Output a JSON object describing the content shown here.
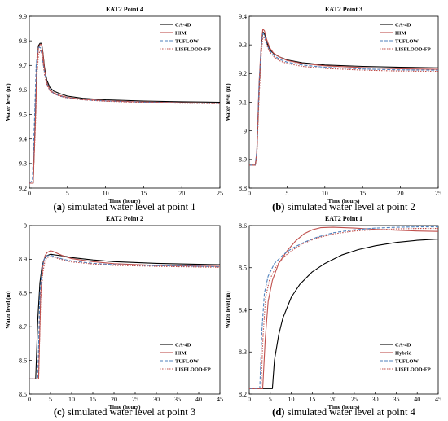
{
  "chart_data": [
    {
      "type": "line",
      "title": "EAT2 Point 4",
      "caption_letter": "(a)",
      "caption_text": " simulated water level at point 1",
      "xlabel": "Time (hours)",
      "ylabel": "Water level (m)",
      "xlim": [
        0,
        25
      ],
      "ylim": [
        9.2,
        9.9
      ],
      "xticks": [
        0,
        5,
        10,
        15,
        20,
        25
      ],
      "yticks": [
        9.2,
        9.3,
        9.4,
        9.5,
        9.6,
        9.7,
        9.8,
        9.9
      ],
      "legend": "top-right",
      "series": [
        {
          "name": "CA-4D",
          "color": "#000000",
          "dash": "",
          "x": [
            0,
            0.5,
            0.8,
            1.0,
            1.2,
            1.4,
            1.6,
            1.8,
            2.0,
            2.3,
            2.7,
            3.2,
            4,
            5,
            7,
            10,
            15,
            20,
            25
          ],
          "y": [
            9.22,
            9.22,
            9.5,
            9.72,
            9.78,
            9.79,
            9.79,
            9.75,
            9.69,
            9.64,
            9.61,
            9.595,
            9.585,
            9.575,
            9.566,
            9.56,
            9.555,
            9.552,
            9.55
          ]
        },
        {
          "name": "HIM",
          "color": "#c0504d",
          "dash": "",
          "x": [
            0,
            0.5,
            0.8,
            1.0,
            1.2,
            1.4,
            1.6,
            1.8,
            2.0,
            2.3,
            2.7,
            3.2,
            4,
            5,
            7,
            10,
            15,
            20,
            25
          ],
          "y": [
            9.22,
            9.22,
            9.48,
            9.7,
            9.77,
            9.785,
            9.785,
            9.745,
            9.68,
            9.63,
            9.6,
            9.588,
            9.578,
            9.57,
            9.562,
            9.556,
            9.551,
            9.548,
            9.546
          ]
        },
        {
          "name": "TUFLOW",
          "color": "#4f81bd",
          "dash": "4,2",
          "x": [
            0,
            0.4,
            0.7,
            0.9,
            1.1,
            1.3,
            1.5,
            1.7,
            2.0,
            2.3,
            2.7,
            3.2,
            4,
            5,
            7,
            10,
            15,
            20,
            25
          ],
          "y": [
            9.22,
            9.23,
            9.5,
            9.7,
            9.76,
            9.775,
            9.77,
            9.73,
            9.67,
            9.625,
            9.6,
            9.585,
            9.575,
            9.568,
            9.56,
            9.555,
            9.55,
            9.547,
            9.545
          ]
        },
        {
          "name": "LISFLOOD-FP",
          "color": "#c0504d",
          "dash": "1.5,1.5",
          "x": [
            0,
            0.5,
            0.8,
            1.0,
            1.2,
            1.4,
            1.6,
            1.8,
            2.0,
            2.3,
            2.7,
            3.2,
            4,
            5,
            7,
            10,
            15,
            20,
            25
          ],
          "y": [
            9.22,
            9.22,
            9.45,
            9.66,
            9.74,
            9.76,
            9.755,
            9.72,
            9.66,
            9.62,
            9.597,
            9.585,
            9.575,
            9.567,
            9.56,
            9.554,
            9.549,
            9.546,
            9.544
          ]
        }
      ]
    },
    {
      "type": "line",
      "title": "EAT2 Point 3",
      "caption_letter": "(b)",
      "caption_text": " simulated water level at point 2",
      "xlabel": "Time (hours)",
      "ylabel": "Water level (m)",
      "xlim": [
        0,
        25
      ],
      "ylim": [
        8.8,
        9.4
      ],
      "xticks": [
        0,
        5,
        10,
        15,
        20,
        25
      ],
      "yticks": [
        8.8,
        8.9,
        9,
        9.1,
        9.2,
        9.3,
        9.4
      ],
      "legend": "top-right",
      "series": [
        {
          "name": "CA-4D",
          "color": "#000000",
          "dash": "",
          "x": [
            0,
            0.8,
            1.0,
            1.3,
            1.6,
            1.8,
            2.0,
            2.3,
            2.7,
            3.2,
            4,
            5,
            7,
            10,
            15,
            20,
            25
          ],
          "y": [
            8.88,
            8.88,
            8.92,
            9.15,
            9.3,
            9.345,
            9.34,
            9.31,
            9.285,
            9.27,
            9.258,
            9.248,
            9.238,
            9.23,
            9.225,
            9.222,
            9.22
          ]
        },
        {
          "name": "HIM",
          "color": "#c0504d",
          "dash": "",
          "x": [
            0,
            0.8,
            1.0,
            1.3,
            1.6,
            1.8,
            2.0,
            2.3,
            2.7,
            3.2,
            4,
            5,
            7,
            10,
            15,
            20,
            25
          ],
          "y": [
            8.88,
            8.88,
            8.93,
            9.17,
            9.31,
            9.355,
            9.35,
            9.32,
            9.29,
            9.272,
            9.258,
            9.246,
            9.235,
            9.227,
            9.221,
            9.217,
            9.215
          ]
        },
        {
          "name": "TUFLOW",
          "color": "#4f81bd",
          "dash": "4,2",
          "x": [
            0,
            0.8,
            1.0,
            1.3,
            1.6,
            1.8,
            2.0,
            2.3,
            2.7,
            3.2,
            4,
            5,
            7,
            10,
            15,
            20,
            25
          ],
          "y": [
            8.88,
            8.88,
            8.93,
            9.16,
            9.3,
            9.34,
            9.335,
            9.305,
            9.28,
            9.265,
            9.25,
            9.24,
            9.23,
            9.222,
            9.216,
            9.213,
            9.212
          ]
        },
        {
          "name": "LISFLOOD-FP",
          "color": "#c0504d",
          "dash": "1.5,1.5",
          "x": [
            0,
            0.8,
            1.0,
            1.3,
            1.6,
            1.8,
            2.0,
            2.3,
            2.7,
            3.2,
            4,
            5,
            7,
            10,
            15,
            20,
            25
          ],
          "y": [
            8.88,
            8.88,
            8.91,
            9.12,
            9.27,
            9.325,
            9.325,
            9.3,
            9.275,
            9.26,
            9.245,
            9.235,
            9.225,
            9.218,
            9.212,
            9.209,
            9.208
          ]
        }
      ]
    },
    {
      "type": "line",
      "title": "EAT2 Point 2",
      "caption_letter": "(c)",
      "caption_text": " simulated water level at point 3",
      "xlabel": "Time (hours)",
      "ylabel": "Water level (m)",
      "xlim": [
        0,
        45
      ],
      "ylim": [
        8.5,
        9
      ],
      "xticks": [
        0,
        5,
        10,
        15,
        20,
        25,
        30,
        35,
        40,
        45
      ],
      "yticks": [
        8.5,
        8.6,
        8.7,
        8.8,
        8.9,
        9
      ],
      "legend": "bottom-right",
      "series": [
        {
          "name": "CA-4D",
          "color": "#000000",
          "dash": "",
          "x": [
            0,
            1.5,
            2.0,
            2.5,
            3.0,
            3.5,
            4.0,
            5.0,
            6.0,
            8,
            10,
            15,
            20,
            30,
            40,
            45
          ],
          "y": [
            8.545,
            8.545,
            8.72,
            8.83,
            8.88,
            8.9,
            8.91,
            8.915,
            8.913,
            8.91,
            8.905,
            8.898,
            8.893,
            8.888,
            8.885,
            8.884
          ]
        },
        {
          "name": "HIM",
          "color": "#c0504d",
          "dash": "",
          "x": [
            0,
            2.2,
            2.7,
            3.2,
            3.7,
            4.2,
            5.0,
            5.5,
            6.5,
            8,
            10,
            15,
            20,
            30,
            40,
            45
          ],
          "y": [
            8.545,
            8.545,
            8.8,
            8.88,
            8.91,
            8.92,
            8.925,
            8.924,
            8.918,
            8.91,
            8.902,
            8.893,
            8.887,
            8.882,
            8.88,
            8.879
          ]
        },
        {
          "name": "TUFLOW",
          "color": "#4f81bd",
          "dash": "4,2",
          "x": [
            0,
            2.0,
            2.5,
            3.0,
            3.5,
            4.0,
            5.0,
            6.0,
            8,
            10,
            15,
            20,
            30,
            40,
            45
          ],
          "y": [
            8.545,
            8.545,
            8.8,
            8.87,
            8.9,
            8.91,
            8.912,
            8.908,
            8.9,
            8.895,
            8.888,
            8.884,
            8.881,
            8.879,
            8.878
          ]
        },
        {
          "name": "LISFLOOD-FP",
          "color": "#c0504d",
          "dash": "1.5,1.5",
          "x": [
            0,
            2.2,
            2.7,
            3.2,
            3.7,
            4.2,
            5.0,
            6.0,
            8,
            10,
            15,
            20,
            30,
            40,
            45
          ],
          "y": [
            8.545,
            8.545,
            8.78,
            8.86,
            8.895,
            8.905,
            8.908,
            8.905,
            8.898,
            8.892,
            8.886,
            8.882,
            8.879,
            8.877,
            8.876
          ]
        }
      ]
    },
    {
      "type": "line",
      "title": "EAT2 Point 1",
      "caption_letter": "(d)",
      "caption_text": " simulated water level at point 4",
      "xlabel": "Time (hours)",
      "ylabel": "Water level (m)",
      "xlim": [
        0,
        45
      ],
      "ylim": [
        8.2,
        8.6
      ],
      "xticks": [
        0,
        5,
        10,
        15,
        20,
        25,
        30,
        35,
        40,
        45
      ],
      "yticks": [
        8.2,
        8.3,
        8.4,
        8.5,
        8.6
      ],
      "legend": "bottom-right",
      "series": [
        {
          "name": "CA-4D",
          "color": "#000000",
          "dash": "",
          "x": [
            0,
            5.5,
            6.0,
            7,
            8,
            10,
            12,
            15,
            18,
            22,
            26,
            30,
            35,
            40,
            45
          ],
          "y": [
            8.213,
            8.213,
            8.28,
            8.34,
            8.38,
            8.43,
            8.46,
            8.49,
            8.51,
            8.53,
            8.543,
            8.552,
            8.56,
            8.565,
            8.568
          ]
        },
        {
          "name": "Hybrid",
          "color": "#c0504d",
          "dash": "",
          "x": [
            0,
            3.2,
            3.8,
            4.5,
            5.5,
            7,
            9,
            11,
            13,
            15,
            17,
            20,
            25,
            30,
            35,
            40,
            45
          ],
          "y": [
            8.213,
            8.213,
            8.33,
            8.42,
            8.47,
            8.51,
            8.54,
            8.563,
            8.58,
            8.59,
            8.595,
            8.596,
            8.594,
            8.591,
            8.589,
            8.587,
            8.586
          ]
        },
        {
          "name": "TUFLOW",
          "color": "#4f81bd",
          "dash": "4,2",
          "x": [
            0,
            2.5,
            3.0,
            3.6,
            4.5,
            6,
            8,
            10,
            13,
            16,
            20,
            25,
            30,
            35,
            40,
            45
          ],
          "y": [
            8.213,
            8.213,
            8.35,
            8.44,
            8.48,
            8.51,
            8.53,
            8.545,
            8.56,
            8.572,
            8.583,
            8.59,
            8.594,
            8.596,
            8.597,
            8.597
          ]
        },
        {
          "name": "LISFLOOD-FP",
          "color": "#c0504d",
          "dash": "1.5,1.5",
          "x": [
            0,
            2.8,
            3.3,
            3.9,
            4.8,
            6.5,
            8.5,
            10.5,
            13,
            16,
            20,
            25,
            30,
            35,
            40,
            45
          ],
          "y": [
            8.213,
            8.213,
            8.34,
            8.43,
            8.47,
            8.505,
            8.528,
            8.543,
            8.558,
            8.57,
            8.58,
            8.587,
            8.59,
            8.592,
            8.593,
            8.593
          ]
        }
      ]
    }
  ]
}
